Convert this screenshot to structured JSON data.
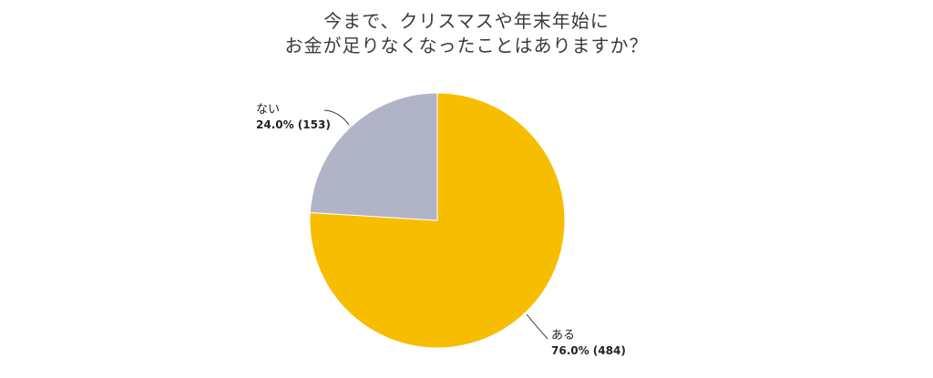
{
  "chart_data": {
    "type": "pie",
    "title_lines": [
      "今まで、クリスマスや年末年始に",
      "お金が足りなくなったことはありますか？"
    ],
    "slices": [
      {
        "label": "ある",
        "percent": "76.0%",
        "count": 484,
        "display": "76.0% (484)",
        "color": "#f7bd00"
      },
      {
        "label": "ない",
        "percent": "24.0%",
        "count": 153,
        "display": "24.0% (153)",
        "color": "#b1b4c7"
      }
    ],
    "start_angle_deg": 0,
    "direction": "clockwise"
  }
}
